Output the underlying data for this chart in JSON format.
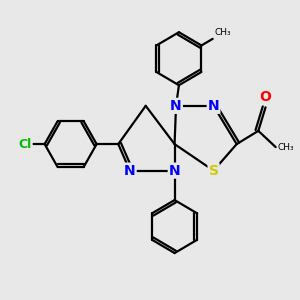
{
  "bg_color": "#e8e8e8",
  "bond_color": "#000000",
  "bond_width": 1.6,
  "atom_colors": {
    "N": "#0000ff",
    "S": "#cccc00",
    "O": "#ff0000",
    "Cl": "#00bb00",
    "C": "#000000"
  },
  "font_size": 10
}
